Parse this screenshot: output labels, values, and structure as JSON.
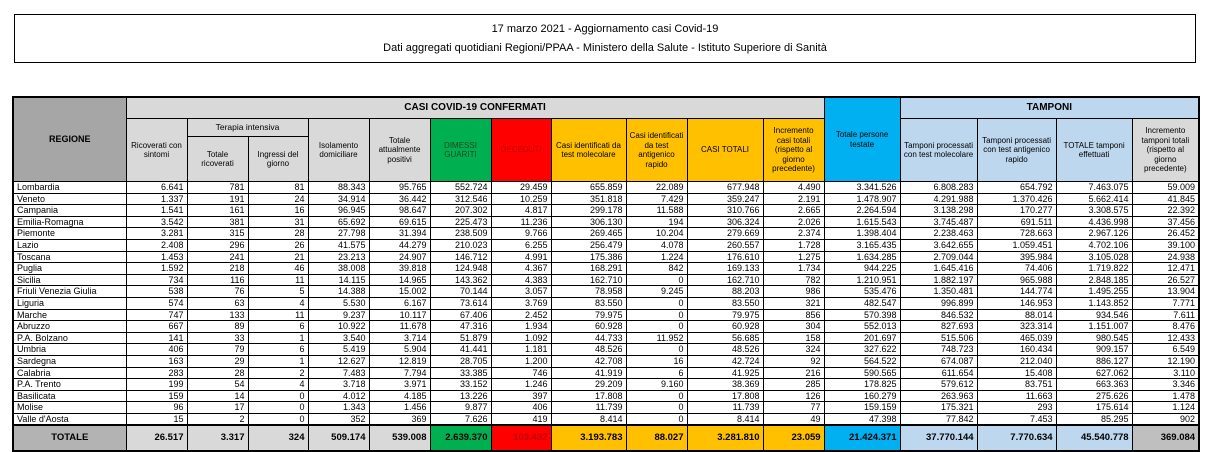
{
  "title": {
    "line1": "17 marzo 2021 - Aggiornamento casi Covid-19",
    "line2": "Dati aggregati quotidiani Regioni/PPAA - Ministero della Salute - Istituto Superiore di Sanità"
  },
  "colors": {
    "green": "#00B050",
    "red": "#FF0000",
    "yellow": "#FFC000",
    "cyan": "#00B0F0",
    "light_blue": "#BDD7EE",
    "header_gray": "#D9D9D9",
    "region_header_gray": "#A6A6A6",
    "total_row_gray": "#BFBFBF"
  },
  "table": {
    "group_headers": {
      "regione": "REGIONE",
      "confermati": "CASI COVID-19 CONFERMATI",
      "terapia_intensiva": "Terapia intensiva",
      "tamponi": "TAMPONI"
    },
    "columns": [
      "Ricoverati con sintomi",
      "Totale ricoverati",
      "Ingressi del giorno",
      "Isolamento domiciliare",
      "Totale attualmente positivi",
      "DIMESSI GUARITI",
      "DECEDUTI",
      "Casi identificati da test molecolare",
      "Casi identificati da test antigenico rapido",
      "CASI TOTALI",
      "Incremento casi totali (rispetto al giorno precedente)",
      "Totale persone testate",
      "Tamponi processati con test molecolare",
      "Tamponi processati con test antigenico rapido",
      "TOTALE tamponi effettuati",
      "Incremento tamponi totali (rispetto al giorno precedente)"
    ],
    "rows": [
      {
        "region": "Lombardia",
        "values": [
          "6.641",
          "781",
          "81",
          "88.343",
          "95.765",
          "552.724",
          "29.459",
          "655.859",
          "22.089",
          "677.948",
          "4.490",
          "3.341.526",
          "6.808.283",
          "654.792",
          "7.463.075",
          "59.009"
        ]
      },
      {
        "region": "Veneto",
        "values": [
          "1.337",
          "191",
          "24",
          "34.914",
          "36.442",
          "312.546",
          "10.259",
          "351.818",
          "7.429",
          "359.247",
          "2.191",
          "1.478.907",
          "4.291.988",
          "1.370.426",
          "5.662.414",
          "41.845"
        ]
      },
      {
        "region": "Campania",
        "values": [
          "1.541",
          "161",
          "16",
          "96.945",
          "98.647",
          "207.302",
          "4.817",
          "299.178",
          "11.588",
          "310.766",
          "2.665",
          "2.264.594",
          "3.138.298",
          "170.277",
          "3.308.575",
          "22.392"
        ]
      },
      {
        "region": "Emilia-Romagna",
        "values": [
          "3.542",
          "381",
          "31",
          "65.692",
          "69.615",
          "225.473",
          "11.236",
          "306.130",
          "194",
          "306.324",
          "2.026",
          "1.615.543",
          "3.745.487",
          "691.511",
          "4.436.998",
          "37.456"
        ]
      },
      {
        "region": "Piemonte",
        "values": [
          "3.281",
          "315",
          "28",
          "27.798",
          "31.394",
          "238.509",
          "9.766",
          "269.465",
          "10.204",
          "279.669",
          "2.374",
          "1.398.404",
          "2.238.463",
          "728.663",
          "2.967.126",
          "26.452"
        ]
      },
      {
        "region": "Lazio",
        "values": [
          "2.408",
          "296",
          "26",
          "41.575",
          "44.279",
          "210.023",
          "6.255",
          "256.479",
          "4.078",
          "260.557",
          "1.728",
          "3.165.435",
          "3.642.655",
          "1.059.451",
          "4.702.106",
          "39.100"
        ]
      },
      {
        "region": "Toscana",
        "values": [
          "1.453",
          "241",
          "21",
          "23.213",
          "24.907",
          "146.712",
          "4.991",
          "175.386",
          "1.224",
          "176.610",
          "1.275",
          "1.634.285",
          "2.709.044",
          "395.984",
          "3.105.028",
          "24.938"
        ]
      },
      {
        "region": "Puglia",
        "values": [
          "1.592",
          "218",
          "46",
          "38.008",
          "39.818",
          "124.948",
          "4.367",
          "168.291",
          "842",
          "169.133",
          "1.734",
          "944.225",
          "1.645.416",
          "74.406",
          "1.719.822",
          "12.471"
        ]
      },
      {
        "region": "Sicilia",
        "values": [
          "734",
          "116",
          "11",
          "14.115",
          "14.965",
          "143.362",
          "4.383",
          "162.710",
          "0",
          "162.710",
          "782",
          "1.210.951",
          "1.882.197",
          "965.988",
          "2.848.185",
          "26.527"
        ]
      },
      {
        "region": "Friuli Venezia Giulia",
        "values": [
          "538",
          "76",
          "5",
          "14.388",
          "15.002",
          "70.144",
          "3.057",
          "78.958",
          "9.245",
          "88.203",
          "986",
          "535.476",
          "1.350.481",
          "144.774",
          "1.495.255",
          "13.904"
        ]
      },
      {
        "region": "Liguria",
        "values": [
          "574",
          "63",
          "4",
          "5.530",
          "6.167",
          "73.614",
          "3.769",
          "83.550",
          "0",
          "83.550",
          "321",
          "482.547",
          "996.899",
          "146.953",
          "1.143.852",
          "7.771"
        ]
      },
      {
        "region": "Marche",
        "values": [
          "747",
          "133",
          "11",
          "9.237",
          "10.117",
          "67.406",
          "2.452",
          "79.975",
          "0",
          "79.975",
          "856",
          "570.398",
          "846.532",
          "88.014",
          "934.546",
          "7.611"
        ]
      },
      {
        "region": "Abruzzo",
        "values": [
          "667",
          "89",
          "6",
          "10.922",
          "11.678",
          "47.316",
          "1.934",
          "60.928",
          "0",
          "60.928",
          "304",
          "552.013",
          "827.693",
          "323.314",
          "1.151.007",
          "8.476"
        ]
      },
      {
        "region": "P.A. Bolzano",
        "values": [
          "141",
          "33",
          "1",
          "3.540",
          "3.714",
          "51.879",
          "1.092",
          "44.733",
          "11.952",
          "56.685",
          "158",
          "201.697",
          "515.506",
          "465.039",
          "980.545",
          "12.433"
        ]
      },
      {
        "region": "Umbria",
        "values": [
          "406",
          "79",
          "6",
          "5.419",
          "5.904",
          "41.441",
          "1.181",
          "48.526",
          "0",
          "48.526",
          "324",
          "327.622",
          "748.723",
          "160.434",
          "909.157",
          "6.549"
        ]
      },
      {
        "region": "Sardegna",
        "values": [
          "163",
          "29",
          "1",
          "12.627",
          "12.819",
          "28.705",
          "1.200",
          "42.708",
          "16",
          "42.724",
          "92",
          "564.522",
          "674.087",
          "212.040",
          "886.127",
          "12.190"
        ]
      },
      {
        "region": "Calabria",
        "values": [
          "283",
          "28",
          "2",
          "7.483",
          "7.794",
          "33.385",
          "746",
          "41.919",
          "6",
          "41.925",
          "216",
          "590.565",
          "611.654",
          "15.408",
          "627.062",
          "3.110"
        ]
      },
      {
        "region": "P.A. Trento",
        "values": [
          "199",
          "54",
          "4",
          "3.718",
          "3.971",
          "33.152",
          "1.246",
          "29.209",
          "9.160",
          "38.369",
          "285",
          "178.825",
          "579.612",
          "83.751",
          "663.363",
          "3.346"
        ]
      },
      {
        "region": "Basilicata",
        "values": [
          "159",
          "14",
          "0",
          "4.012",
          "4.185",
          "13.226",
          "397",
          "17.808",
          "0",
          "17.808",
          "126",
          "160.279",
          "263.963",
          "11.663",
          "275.626",
          "1.478"
        ]
      },
      {
        "region": "Molise",
        "values": [
          "96",
          "17",
          "0",
          "1.343",
          "1.456",
          "9.877",
          "406",
          "11.739",
          "0",
          "11.739",
          "77",
          "159.159",
          "175.321",
          "293",
          "175.614",
          "1.124"
        ]
      },
      {
        "region": "Valle d'Aosta",
        "values": [
          "15",
          "2",
          "0",
          "352",
          "369",
          "7.626",
          "419",
          "8.414",
          "0",
          "8.414",
          "49",
          "47.398",
          "77.842",
          "7.453",
          "85.295",
          "902"
        ]
      }
    ],
    "total_row": {
      "region": "TOTALE",
      "values": [
        "26.517",
        "3.317",
        "324",
        "509.174",
        "539.008",
        "2.639.370",
        "103.432",
        "3.193.783",
        "88.027",
        "3.281.810",
        "23.059",
        "21.424.371",
        "37.770.144",
        "7.770.634",
        "45.540.778",
        "369.084"
      ]
    }
  }
}
